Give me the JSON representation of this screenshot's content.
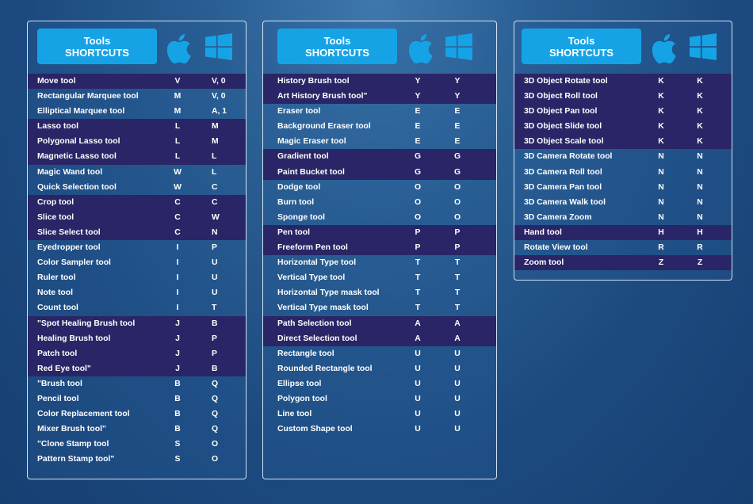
{
  "colors": {
    "accent": "#16a3e6",
    "row_highlight": "#2a2566",
    "border": "#d3e2f2"
  },
  "icons": {
    "mac": "apple-icon",
    "windows": "windows-icon"
  },
  "panels": [
    {
      "title_line1": "Tools",
      "title_line2": "SHORTCUTS",
      "rows": [
        {
          "name": "Move tool",
          "mac": "V",
          "win": "V, 0",
          "dark": true
        },
        {
          "name": "Rectangular Marquee tool",
          "mac": "M",
          "win": "V, 0",
          "dark": false
        },
        {
          "name": "Elliptical Marquee tool",
          "mac": "M",
          "win": "A, 1",
          "dark": false
        },
        {
          "name": "Lasso tool",
          "mac": "L",
          "win": "M",
          "dark": true
        },
        {
          "name": "Polygonal Lasso tool",
          "mac": "L",
          "win": "M",
          "dark": true
        },
        {
          "name": "Magnetic Lasso tool",
          "mac": "L",
          "win": "L",
          "dark": true
        },
        {
          "name": "Magic Wand tool",
          "mac": "W",
          "win": "L",
          "dark": false
        },
        {
          "name": "Quick Selection tool",
          "mac": "W",
          "win": "C",
          "dark": false
        },
        {
          "name": "Crop tool",
          "mac": "C",
          "win": "C",
          "dark": true
        },
        {
          "name": "Slice tool",
          "mac": "C",
          "win": "W",
          "dark": true
        },
        {
          "name": "Slice Select tool",
          "mac": "C",
          "win": "N",
          "dark": true
        },
        {
          "name": "Eyedropper tool",
          "mac": "I",
          "win": "P",
          "dark": false
        },
        {
          "name": "Color Sampler tool",
          "mac": "I",
          "win": "U",
          "dark": false
        },
        {
          "name": "Ruler tool",
          "mac": "I",
          "win": "U",
          "dark": false
        },
        {
          "name": "Note tool",
          "mac": "I",
          "win": "U",
          "dark": false
        },
        {
          "name": "Count tool",
          "mac": "I",
          "win": "T",
          "dark": false
        },
        {
          "name": "\"Spot Healing Brush tool",
          "mac": "J",
          "win": "B",
          "dark": true
        },
        {
          "name": "Healing Brush tool",
          "mac": "J",
          "win": "P",
          "dark": true
        },
        {
          "name": "Patch tool",
          "mac": "J",
          "win": "P",
          "dark": true
        },
        {
          "name": "Red Eye tool\"",
          "mac": "J",
          "win": "B",
          "dark": true
        },
        {
          "name": "\"Brush tool",
          "mac": "B",
          "win": "Q",
          "dark": false
        },
        {
          "name": "Pencil tool",
          "mac": "B",
          "win": "Q",
          "dark": false
        },
        {
          "name": "Color Replacement tool",
          "mac": "B",
          "win": "Q",
          "dark": false
        },
        {
          "name": "Mixer Brush tool\"",
          "mac": "B",
          "win": "Q",
          "dark": false
        },
        {
          "name": "\"Clone Stamp tool",
          "mac": "S",
          "win": "O",
          "dark": false
        },
        {
          "name": "Pattern Stamp tool\"",
          "mac": "S",
          "win": "O",
          "dark": false
        }
      ]
    },
    {
      "title_line1": "Tools",
      "title_line2": "SHORTCUTS",
      "rows": [
        {
          "name": "History Brush tool",
          "mac": "Y",
          "win": "Y",
          "dark": true
        },
        {
          "name": "Art History Brush tool\"",
          "mac": "Y",
          "win": "Y",
          "dark": true
        },
        {
          "name": "Eraser tool",
          "mac": "E",
          "win": "E",
          "dark": false
        },
        {
          "name": "Background Eraser tool",
          "mac": "E",
          "win": "E",
          "dark": false
        },
        {
          "name": "Magic Eraser tool",
          "mac": "E",
          "win": "E",
          "dark": false
        },
        {
          "name": "Gradient tool",
          "mac": "G",
          "win": "G",
          "dark": true
        },
        {
          "name": "Paint Bucket tool",
          "mac": "G",
          "win": "G",
          "dark": true
        },
        {
          "name": "Dodge tool",
          "mac": "O",
          "win": "O",
          "dark": false
        },
        {
          "name": "Burn tool",
          "mac": "O",
          "win": "O",
          "dark": false
        },
        {
          "name": "Sponge tool",
          "mac": "O",
          "win": "O",
          "dark": false
        },
        {
          "name": "Pen tool",
          "mac": "P",
          "win": "P",
          "dark": true
        },
        {
          "name": "Freeform Pen tool",
          "mac": "P",
          "win": "P",
          "dark": true
        },
        {
          "name": "Horizontal Type tool",
          "mac": "T",
          "win": "T",
          "dark": false
        },
        {
          "name": "Vertical Type tool",
          "mac": "T",
          "win": "T",
          "dark": false
        },
        {
          "name": "Horizontal Type mask tool",
          "mac": "T",
          "win": "T",
          "dark": false
        },
        {
          "name": "Vertical Type mask tool",
          "mac": "T",
          "win": "T",
          "dark": false
        },
        {
          "name": "Path Selection tool",
          "mac": "A",
          "win": "A",
          "dark": true
        },
        {
          "name": "Direct Selection tool",
          "mac": "A",
          "win": "A",
          "dark": true
        },
        {
          "name": "Rectangle tool",
          "mac": "U",
          "win": "U",
          "dark": false
        },
        {
          "name": "Rounded Rectangle tool",
          "mac": "U",
          "win": "U",
          "dark": false
        },
        {
          "name": "Ellipse tool",
          "mac": "U",
          "win": "U",
          "dark": false
        },
        {
          "name": "Polygon tool",
          "mac": "U",
          "win": "U",
          "dark": false
        },
        {
          "name": "Line tool",
          "mac": "U",
          "win": "U",
          "dark": false
        },
        {
          "name": "Custom Shape tool",
          "mac": "U",
          "win": "U",
          "dark": false
        }
      ]
    },
    {
      "title_line1": "Tools",
      "title_line2": "SHORTCUTS",
      "rows": [
        {
          "name": "3D Object Rotate tool",
          "mac": "K",
          "win": "K",
          "dark": true
        },
        {
          "name": "3D Object Roll tool",
          "mac": "K",
          "win": "K",
          "dark": true
        },
        {
          "name": "3D Object Pan tool",
          "mac": "K",
          "win": "K",
          "dark": true
        },
        {
          "name": "3D Object Slide tool",
          "mac": "K",
          "win": "K",
          "dark": true
        },
        {
          "name": "3D Object Scale tool",
          "mac": "K",
          "win": "K",
          "dark": true
        },
        {
          "name": "3D Camera Rotate tool",
          "mac": "N",
          "win": "N",
          "dark": false
        },
        {
          "name": "3D Camera Roll tool",
          "mac": "N",
          "win": "N",
          "dark": false
        },
        {
          "name": "3D Camera Pan tool",
          "mac": "N",
          "win": "N",
          "dark": false
        },
        {
          "name": "3D Camera Walk tool",
          "mac": "N",
          "win": "N",
          "dark": false
        },
        {
          "name": "3D Camera Zoom",
          "mac": "N",
          "win": "N",
          "dark": false
        },
        {
          "name": "Hand tool",
          "mac": "H",
          "win": "H",
          "dark": true
        },
        {
          "name": "Rotate View tool",
          "mac": "R",
          "win": "R",
          "dark": false
        },
        {
          "name": "Zoom tool",
          "mac": "Z",
          "win": "Z",
          "dark": true
        }
      ]
    }
  ]
}
